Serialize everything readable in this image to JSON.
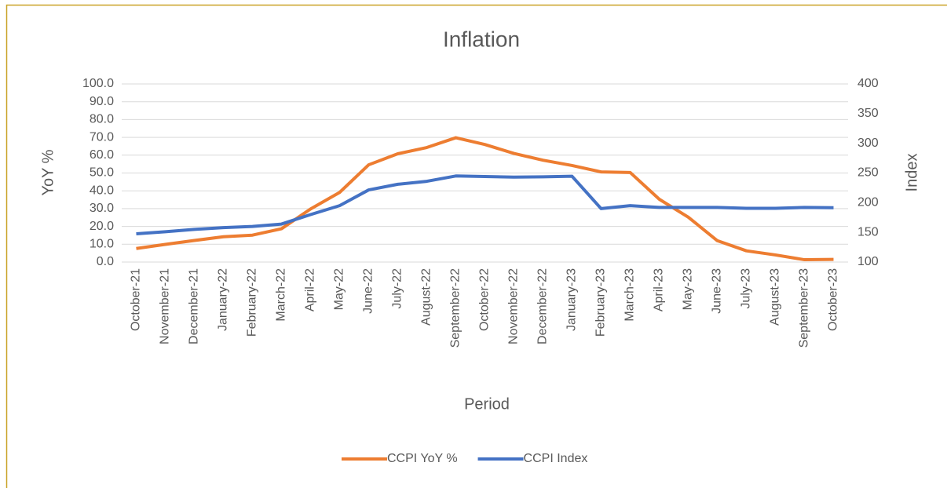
{
  "chart_data": {
    "type": "line",
    "title": "Inflation",
    "x_label": "Period",
    "y_label": "YoY %",
    "y2_label": "Index",
    "categories": [
      "October-21",
      "November-21",
      "December-21",
      "January-22",
      "February-22",
      "March-22",
      "April-22",
      "May-22",
      "June-22",
      "July-22",
      "August-22",
      "September-22",
      "October-22",
      "November-22",
      "December-22",
      "January-23",
      "February-23",
      "March-23",
      "April-23",
      "May-23",
      "June-23",
      "July-23",
      "August-23",
      "September-23",
      "October-23"
    ],
    "series": [
      {
        "name": "CCPI YoY %",
        "color": "#ed7d31",
        "values": [
          7.6,
          9.9,
          12.1,
          14.2,
          15.1,
          18.7,
          29.8,
          39.1,
          54.6,
          60.8,
          64.3,
          69.8,
          66.0,
          61.0,
          57.2,
          54.2,
          50.6,
          50.3,
          35.3,
          25.2,
          12.0,
          6.3,
          4.0,
          1.3,
          1.5
        ]
      },
      {
        "name": "CCPI Index",
        "color": "#4472c4",
        "axis": "y2",
        "values": [
          147.6,
          151,
          155,
          158,
          160,
          164,
          180,
          195,
          221.5,
          231,
          236,
          245,
          244,
          243,
          243.5,
          244.5,
          190,
          195,
          192,
          192,
          192,
          190.5,
          190.5,
          192,
          191.5
        ]
      }
    ],
    "ylim": [
      0,
      100
    ],
    "yticks": [
      {
        "value": 0,
        "label": "0.0"
      },
      {
        "value": 10,
        "label": "10.0"
      },
      {
        "value": 20,
        "label": "20.0"
      },
      {
        "value": 30,
        "label": "30.0"
      },
      {
        "value": 40,
        "label": "40.0"
      },
      {
        "value": 50,
        "label": "50.0"
      },
      {
        "value": 60,
        "label": "60.0"
      },
      {
        "value": 70,
        "label": "70.0"
      },
      {
        "value": 80,
        "label": "80.0"
      },
      {
        "value": 90,
        "label": "90.0"
      },
      {
        "value": 100,
        "label": "100.0"
      }
    ],
    "y2lim": [
      100,
      400
    ],
    "y2ticks": [
      100,
      150,
      200,
      250,
      300,
      350,
      400
    ],
    "grid": true,
    "legend": "bottom"
  }
}
